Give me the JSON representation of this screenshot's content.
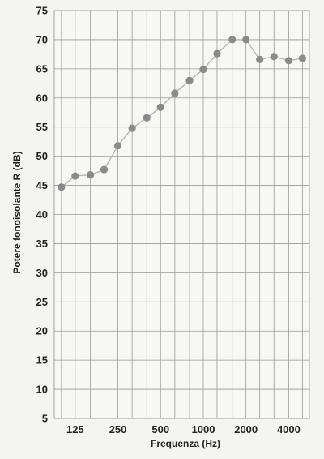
{
  "chart_data": {
    "type": "line",
    "title": "",
    "xlabel": "Frequenza (Hz)",
    "ylabel": "Potere fonoisolante R (dB)",
    "x_scale": "log",
    "x_tick_labels": [
      "125",
      "250",
      "500",
      "1000",
      "2000",
      "4000"
    ],
    "x_ticks": [
      125,
      250,
      500,
      1000,
      2000,
      4000
    ],
    "y_ticks": [
      5,
      10,
      15,
      20,
      25,
      30,
      35,
      40,
      45,
      50,
      55,
      60,
      65,
      70,
      75
    ],
    "ylim": [
      5,
      75
    ],
    "grid": true,
    "series": [
      {
        "name": "",
        "x": [
          100,
          125,
          160,
          200,
          250,
          315,
          400,
          500,
          630,
          800,
          1000,
          1250,
          1600,
          2000,
          2500,
          3150,
          4000,
          5000
        ],
        "y": [
          44.7,
          46.6,
          46.8,
          47.7,
          51.8,
          54.8,
          56.6,
          58.4,
          60.8,
          63.0,
          64.9,
          67.6,
          70.0,
          70.0,
          66.6,
          67.1,
          66.4,
          66.8
        ]
      }
    ],
    "colors": {
      "line": "#b5b5b5",
      "marker": "#8a8a8a",
      "grid": "#9a9a9a",
      "background": "#f7f7f4"
    }
  }
}
